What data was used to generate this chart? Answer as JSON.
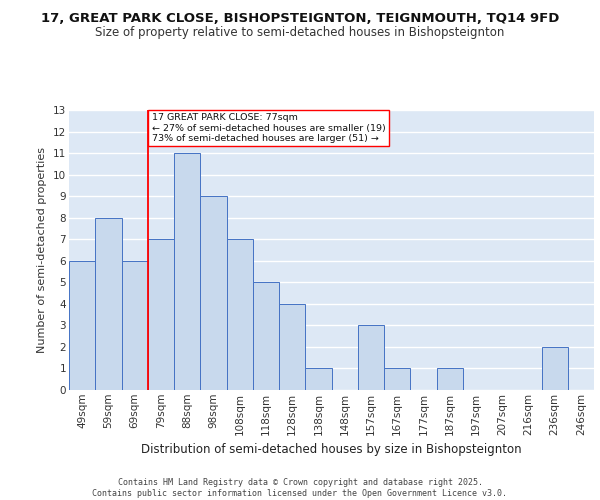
{
  "title1": "17, GREAT PARK CLOSE, BISHOPSTEIGNTON, TEIGNMOUTH, TQ14 9FD",
  "title2": "Size of property relative to semi-detached houses in Bishopsteignton",
  "xlabel": "Distribution of semi-detached houses by size in Bishopsteignton",
  "ylabel": "Number of semi-detached properties",
  "categories": [
    "49sqm",
    "59sqm",
    "69sqm",
    "79sqm",
    "88sqm",
    "98sqm",
    "108sqm",
    "118sqm",
    "128sqm",
    "138sqm",
    "148sqm",
    "157sqm",
    "167sqm",
    "177sqm",
    "187sqm",
    "197sqm",
    "207sqm",
    "216sqm",
    "236sqm",
    "246sqm"
  ],
  "values": [
    6,
    8,
    6,
    7,
    11,
    9,
    7,
    5,
    4,
    1,
    0,
    3,
    1,
    0,
    1,
    0,
    0,
    0,
    2,
    0
  ],
  "bar_color": "#c8d9ed",
  "bar_edge_color": "#4472c4",
  "background_color": "#dde8f5",
  "grid_color": "#ffffff",
  "vline_x": 2.5,
  "vline_color": "red",
  "annotation_text": "17 GREAT PARK CLOSE: 77sqm\n← 27% of semi-detached houses are smaller (19)\n73% of semi-detached houses are larger (51) →",
  "annotation_box_color": "white",
  "annotation_box_edge_color": "red",
  "ylim": [
    0,
    13
  ],
  "yticks": [
    0,
    1,
    2,
    3,
    4,
    5,
    6,
    7,
    8,
    9,
    10,
    11,
    12,
    13
  ],
  "footer": "Contains HM Land Registry data © Crown copyright and database right 2025.\nContains public sector information licensed under the Open Government Licence v3.0.",
  "title_fontsize": 9.5,
  "subtitle_fontsize": 8.5,
  "axis_label_fontsize": 8,
  "tick_fontsize": 7.5,
  "footer_fontsize": 6
}
